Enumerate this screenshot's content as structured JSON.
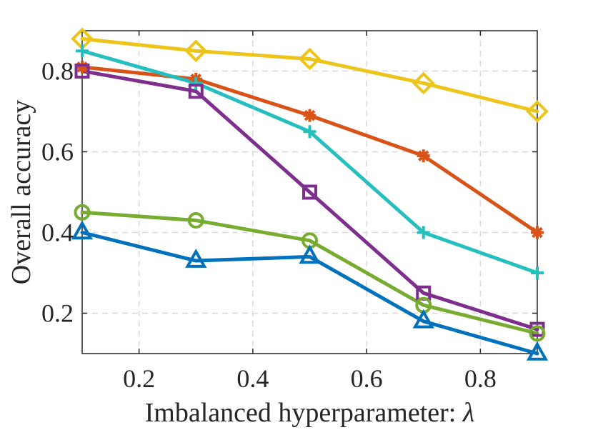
{
  "chart_data": {
    "type": "line",
    "title": "",
    "xlabel": "Imbalanced hyperparameter: ",
    "xlabel_symbol": "λ",
    "ylabel": "Overall accuracy",
    "xlim": [
      0.1,
      0.9
    ],
    "ylim": [
      0.1,
      0.9
    ],
    "xticks": [
      0.2,
      0.4,
      0.6,
      0.8
    ],
    "xtick_labels": [
      "0.2",
      "0.4",
      "0.6",
      "0.8"
    ],
    "yticks": [
      0.2,
      0.4,
      0.6,
      0.8
    ],
    "ytick_labels": [
      "0.2",
      "0.4",
      "0.6",
      "0.8"
    ],
    "grid": true,
    "x": [
      0.1,
      0.3,
      0.5,
      0.7,
      0.9
    ],
    "series": [
      {
        "name": "diamond-series",
        "marker": "diamond",
        "color": "#EDC51A",
        "values": [
          0.88,
          0.85,
          0.83,
          0.77,
          0.7
        ]
      },
      {
        "name": "asterisk-series",
        "marker": "asterisk",
        "color": "#D95319",
        "values": [
          0.81,
          0.78,
          0.69,
          0.59,
          0.4
        ]
      },
      {
        "name": "plus-series",
        "marker": "plus",
        "color": "#26BFBF",
        "values": [
          0.85,
          0.77,
          0.65,
          0.4,
          0.3
        ]
      },
      {
        "name": "square-series",
        "marker": "square",
        "color": "#7E2F8E",
        "values": [
          0.8,
          0.75,
          0.5,
          0.25,
          0.16
        ]
      },
      {
        "name": "circle-series",
        "marker": "circle",
        "color": "#77AC30",
        "values": [
          0.45,
          0.43,
          0.38,
          0.22,
          0.15
        ]
      },
      {
        "name": "triangle-series",
        "marker": "triangle",
        "color": "#0072BD",
        "values": [
          0.4,
          0.33,
          0.34,
          0.18,
          0.1
        ]
      }
    ]
  }
}
